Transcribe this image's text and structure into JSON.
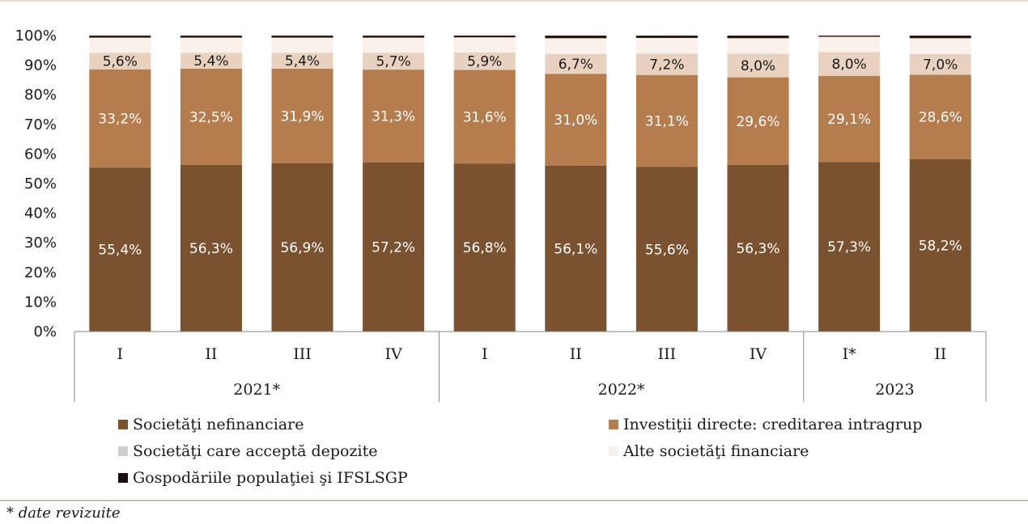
{
  "chart_data": {
    "type": "bar",
    "stacked": true,
    "categories": [
      "I",
      "II",
      "III",
      "IV",
      "I",
      "II",
      "III",
      "IV",
      "I*",
      "II"
    ],
    "groups": [
      {
        "label": "2021*",
        "count": 4
      },
      {
        "label": "2022*",
        "count": 4
      },
      {
        "label": "2023",
        "count": 2
      }
    ],
    "y_ticks": [
      "0%",
      "10%",
      "20%",
      "30%",
      "40%",
      "50%",
      "60%",
      "70%",
      "80%",
      "90%",
      "100%"
    ],
    "ylim": [
      0,
      100
    ],
    "legend_position": "bottom",
    "series": [
      {
        "name": "Societăţi nefinanciare",
        "color": "#7a5230",
        "label_color": "#ffffff",
        "values": [
          55.4,
          56.3,
          56.9,
          57.2,
          56.8,
          56.1,
          55.6,
          56.3,
          57.3,
          58.2
        ],
        "labels": [
          "55,4%",
          "56,3%",
          "56,9%",
          "57,2%",
          "56,8%",
          "56,1%",
          "55,6%",
          "56,3%",
          "57,3%",
          "58,2%"
        ]
      },
      {
        "name": "Investiţii directe: creditarea intragrup",
        "color": "#b57c4e",
        "label_color": "#ffffff",
        "values": [
          33.2,
          32.5,
          31.9,
          31.3,
          31.6,
          31.0,
          31.1,
          29.6,
          29.1,
          28.6
        ],
        "labels": [
          "33,2%",
          "32,5%",
          "31,9%",
          "31,3%",
          "31,6%",
          "31,0%",
          "31,1%",
          "29,6%",
          "29,1%",
          "28,6%"
        ]
      },
      {
        "name": "Societăţi care acceptă depozite",
        "color": "#e8d2bf",
        "label_color": "#1a1a1a",
        "values": [
          5.6,
          5.4,
          5.4,
          5.7,
          5.9,
          6.7,
          7.2,
          8.0,
          8.0,
          7.0
        ],
        "labels": [
          "5,6%",
          "5,4%",
          "5,4%",
          "5,7%",
          "5,9%",
          "6,7%",
          "7,2%",
          "8,0%",
          "8,0%",
          "7,0%"
        ]
      },
      {
        "name": "Alte societăţi financiare",
        "color": "#faf1ea",
        "label_color": "#1a1a1a",
        "values": [
          5.1,
          5.1,
          5.1,
          5.1,
          5.1,
          5.3,
          5.3,
          5.2,
          5.2,
          5.3
        ],
        "labels": []
      },
      {
        "name": "Gospodăriile populaţiei şi IFSLSGP",
        "color": "#2a1a10",
        "label_color": "#ffffff",
        "values": [
          0.7,
          0.7,
          0.7,
          0.7,
          0.6,
          0.9,
          0.8,
          0.9,
          0.4,
          0.9
        ],
        "labels": []
      }
    ]
  },
  "legend": [
    {
      "label": "Societăţi nefinanciare",
      "color": "#7a5230"
    },
    {
      "label": "Investiţii directe: creditarea intragrup",
      "color": "#b57c4e"
    },
    {
      "label": "Societăţi care acceptă depozite",
      "color": "#cfcfcf"
    },
    {
      "label": "Alte societăţi financiare",
      "color": "#f4f0ee"
    },
    {
      "label": "Gospodăriile populaţiei şi IFSLSGP",
      "color": "#1a1010"
    }
  ],
  "footnote": "* date revizuite"
}
